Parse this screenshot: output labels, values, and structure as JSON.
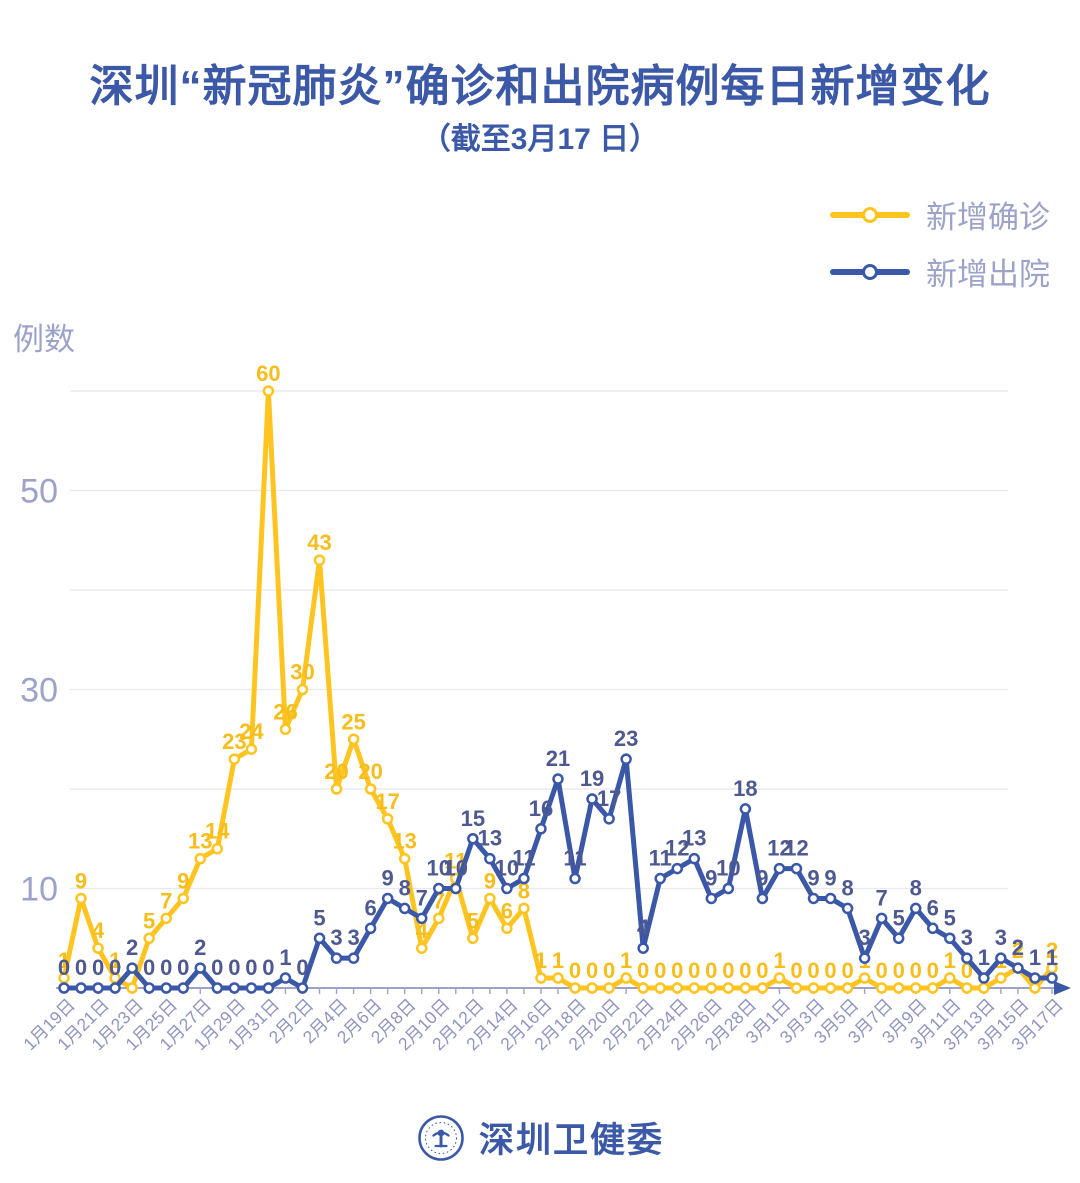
{
  "header": {
    "title": "深圳“新冠肺炎”确诊和出院病例每日新增变化",
    "subtitle": "（截至3月17 日）"
  },
  "legend": {
    "items": [
      {
        "key": "confirmed",
        "label": "新增确诊",
        "color": "#FFC41F"
      },
      {
        "key": "discharged",
        "label": "新增出院",
        "color": "#3A57A8"
      }
    ]
  },
  "colors": {
    "title": "#3C59A8",
    "axis_text": "#9DA2C8",
    "x_label_text": "#8F94C0",
    "grid": "#E8E8EE",
    "axis_line": "#9DA2C8",
    "arrow": "#3A57A8",
    "brand": "#3C59A8"
  },
  "footer": {
    "brand": "深圳卫健委"
  },
  "chart_data": {
    "type": "line",
    "title": "深圳“新冠肺炎”确诊和出院病例每日新增变化（截至3月17 日）",
    "y_axis_title": "例数",
    "xlabel": "",
    "ylabel": "例数",
    "ylim": [
      0,
      62
    ],
    "yticks_labeled": [
      10,
      30,
      50
    ],
    "gridline_values": [
      10,
      20,
      30,
      40,
      50,
      60
    ],
    "grid": true,
    "legend_position": "top-right",
    "x_tick_step": 2,
    "categories": [
      "1月19日",
      "1月20日",
      "1月21日",
      "1月22日",
      "1月23日",
      "1月24日",
      "1月25日",
      "1月26日",
      "1月27日",
      "1月28日",
      "1月29日",
      "1月30日",
      "1月31日",
      "2月1日",
      "2月2日",
      "2月3日",
      "2月4日",
      "2月5日",
      "2月6日",
      "2月7日",
      "2月8日",
      "2月9日",
      "2月10日",
      "2月11日",
      "2月12日",
      "2月13日",
      "2月14日",
      "2月15日",
      "2月16日",
      "2月17日",
      "2月18日",
      "2月19日",
      "2月20日",
      "2月21日",
      "2月22日",
      "2月23日",
      "2月24日",
      "2月25日",
      "2月26日",
      "2月27日",
      "2月28日",
      "2月29日",
      "3月1日",
      "3月2日",
      "3月3日",
      "3月4日",
      "3月5日",
      "3月6日",
      "3月7日",
      "3月8日",
      "3月9日",
      "3月10日",
      "3月11日",
      "3月12日",
      "3月13日",
      "3月14日",
      "3月15日",
      "3月16日",
      "3月17日"
    ],
    "series": [
      {
        "key": "confirmed",
        "name": "新增确诊",
        "color": "#FFC41F",
        "label_color": "#F7BD1B",
        "label_dy": 10,
        "hidden_label_indices": [
          4,
          54,
          57
        ],
        "values": [
          1,
          9,
          4,
          1,
          0,
          5,
          7,
          9,
          13,
          14,
          23,
          24,
          60,
          26,
          30,
          43,
          20,
          25,
          20,
          17,
          13,
          4,
          7,
          11,
          5,
          9,
          6,
          8,
          1,
          1,
          0,
          0,
          0,
          1,
          0,
          0,
          0,
          0,
          0,
          0,
          0,
          0,
          1,
          0,
          0,
          0,
          0,
          1,
          0,
          0,
          0,
          0,
          1,
          0,
          0,
          1,
          2,
          0,
          2
        ]
      },
      {
        "key": "discharged",
        "name": "新增出院",
        "color": "#3A57A8",
        "label_color": "#4D5990",
        "label_dy": 13,
        "hidden_label_indices": [],
        "values": [
          0,
          0,
          0,
          0,
          2,
          0,
          0,
          0,
          2,
          0,
          0,
          0,
          0,
          1,
          0,
          5,
          3,
          3,
          6,
          9,
          8,
          7,
          10,
          10,
          15,
          13,
          10,
          11,
          16,
          21,
          11,
          19,
          17,
          23,
          4,
          11,
          12,
          13,
          9,
          10,
          18,
          9,
          12,
          12,
          9,
          9,
          8,
          3,
          7,
          5,
          8,
          6,
          5,
          3,
          1,
          3,
          2,
          1,
          1
        ]
      }
    ]
  }
}
